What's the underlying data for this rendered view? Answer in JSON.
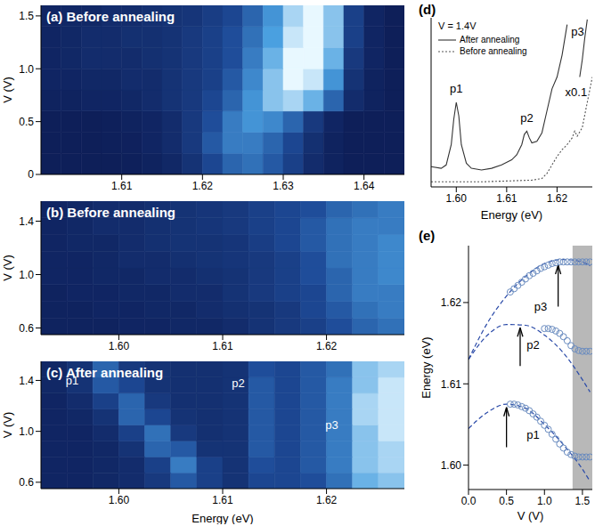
{
  "chart_data": [
    {
      "type": "heatmap",
      "title": "(a) Before annealing",
      "ylabel": "V (V)",
      "xlim": [
        1.6,
        1.645
      ],
      "xticks": [
        1.61,
        1.62,
        1.63,
        1.64
      ],
      "ylim": [
        0,
        1.6
      ],
      "yticks": [
        0,
        0.5,
        {
          "value": 1,
          "label": "1.0"
        },
        1.5
      ],
      "x_edges": [
        1.6,
        1.6025,
        1.605,
        1.6075,
        1.61,
        1.6125,
        1.615,
        1.6175,
        1.62,
        1.6225,
        1.625,
        1.6275,
        1.63,
        1.6325,
        1.635,
        1.6375,
        1.64,
        1.6425,
        1.645
      ],
      "y_edges": [
        0,
        0.2,
        0.4,
        0.6,
        0.8,
        1,
        1.2,
        1.4,
        1.6
      ],
      "cells": [
        [
          0.05,
          0.05,
          0.05,
          0.05,
          0.06,
          0.08,
          0.12,
          0.2,
          0.35,
          0.5,
          0.55,
          0.45,
          0.3,
          0.15,
          0.08,
          0.05,
          0.05,
          0.05
        ],
        [
          0.05,
          0.05,
          0.05,
          0.06,
          0.07,
          0.1,
          0.15,
          0.25,
          0.45,
          0.6,
          0.6,
          0.5,
          0.35,
          0.18,
          0.08,
          0.05,
          0.05,
          0.05
        ],
        [
          0.05,
          0.05,
          0.05,
          0.06,
          0.08,
          0.1,
          0.15,
          0.25,
          0.4,
          0.6,
          0.7,
          0.65,
          0.5,
          0.25,
          0.1,
          0.05,
          0.05,
          0.05
        ],
        [
          0.08,
          0.08,
          0.1,
          0.1,
          0.12,
          0.15,
          0.2,
          0.25,
          0.35,
          0.5,
          0.7,
          0.85,
          0.9,
          0.8,
          0.5,
          0.15,
          0.08,
          0.05
        ],
        [
          0.1,
          0.1,
          0.12,
          0.12,
          0.15,
          0.15,
          0.2,
          0.25,
          0.3,
          0.45,
          0.65,
          0.85,
          1,
          0.95,
          0.7,
          0.2,
          0.08,
          0.05
        ],
        [
          0.1,
          0.12,
          0.15,
          0.15,
          0.15,
          0.18,
          0.2,
          0.25,
          0.3,
          0.4,
          0.6,
          0.8,
          1,
          1,
          0.8,
          0.25,
          0.1,
          0.05
        ],
        [
          0.1,
          0.12,
          0.15,
          0.15,
          0.18,
          0.18,
          0.2,
          0.25,
          0.3,
          0.4,
          0.55,
          0.75,
          0.95,
          1,
          0.85,
          0.3,
          0.1,
          0.05
        ],
        [
          0.1,
          0.12,
          0.12,
          0.15,
          0.15,
          0.18,
          0.2,
          0.22,
          0.28,
          0.35,
          0.5,
          0.7,
          0.9,
          1,
          0.85,
          0.3,
          0.1,
          0.05
        ]
      ]
    },
    {
      "type": "heatmap",
      "title": "(b) Before annealing",
      "ylabel": "V (V)",
      "xlim": [
        1.5925,
        1.6275
      ],
      "xticks": [
        {
          "value": 1.6,
          "label": "1.60"
        },
        1.61,
        1.62
      ],
      "ylim": [
        0.55,
        1.55
      ],
      "yticks": [
        0.6,
        {
          "value": 1,
          "label": "1.0"
        },
        1.4
      ],
      "x_edges": [
        1.5925,
        1.595,
        1.5975,
        1.6,
        1.6025,
        1.605,
        1.6075,
        1.61,
        1.6125,
        1.615,
        1.6175,
        1.62,
        1.6225,
        1.625,
        1.6275
      ],
      "y_edges": [
        0.55,
        0.675,
        0.8,
        0.925,
        1.05,
        1.175,
        1.3,
        1.425,
        1.55
      ],
      "cells": [
        [
          0.08,
          0.08,
          0.08,
          0.1,
          0.1,
          0.12,
          0.12,
          0.15,
          0.2,
          0.25,
          0.3,
          0.4,
          0.5,
          0.55
        ],
        [
          0.08,
          0.08,
          0.1,
          0.1,
          0.12,
          0.12,
          0.15,
          0.18,
          0.2,
          0.25,
          0.35,
          0.45,
          0.55,
          0.6
        ],
        [
          0.08,
          0.1,
          0.1,
          0.12,
          0.12,
          0.15,
          0.15,
          0.2,
          0.25,
          0.3,
          0.35,
          0.5,
          0.6,
          0.6
        ],
        [
          0.1,
          0.1,
          0.12,
          0.12,
          0.15,
          0.15,
          0.18,
          0.2,
          0.25,
          0.3,
          0.4,
          0.5,
          0.6,
          0.65
        ],
        [
          0.1,
          0.1,
          0.12,
          0.15,
          0.15,
          0.18,
          0.2,
          0.22,
          0.25,
          0.3,
          0.4,
          0.55,
          0.6,
          0.65
        ],
        [
          0.1,
          0.12,
          0.12,
          0.15,
          0.18,
          0.2,
          0.2,
          0.22,
          0.28,
          0.35,
          0.45,
          0.55,
          0.6,
          0.65
        ],
        [
          0.1,
          0.12,
          0.15,
          0.15,
          0.18,
          0.2,
          0.22,
          0.25,
          0.3,
          0.35,
          0.45,
          0.55,
          0.6,
          0.6
        ],
        [
          0.1,
          0.12,
          0.15,
          0.15,
          0.18,
          0.2,
          0.22,
          0.25,
          0.3,
          0.35,
          0.4,
          0.5,
          0.55,
          0.6
        ]
      ]
    },
    {
      "type": "heatmap",
      "title": "(c) After annealing",
      "ylabel": "V (V)",
      "xlabel": "Energy (eV)",
      "xlim": [
        1.5925,
        1.6275
      ],
      "xticks": [
        {
          "value": 1.6,
          "label": "1.60"
        },
        1.61,
        1.62
      ],
      "ylim": [
        0.55,
        1.55
      ],
      "yticks": [
        0.6,
        {
          "value": 1,
          "label": "1.0"
        },
        1.4
      ],
      "x_edges": [
        1.5925,
        1.595,
        1.5975,
        1.6,
        1.6025,
        1.605,
        1.6075,
        1.61,
        1.6125,
        1.615,
        1.6175,
        1.62,
        1.6225,
        1.625,
        1.6275
      ],
      "y_edges": [
        0.55,
        0.675,
        0.8,
        0.925,
        1.05,
        1.175,
        1.3,
        1.425,
        1.55
      ],
      "cells": [
        [
          0.1,
          0.1,
          0.12,
          0.15,
          0.25,
          0.45,
          0.3,
          0.2,
          0.35,
          0.35,
          0.4,
          0.55,
          0.8,
          0.85
        ],
        [
          0.1,
          0.1,
          0.12,
          0.15,
          0.3,
          0.6,
          0.3,
          0.2,
          0.4,
          0.35,
          0.45,
          0.6,
          0.85,
          0.9
        ],
        [
          0.1,
          0.1,
          0.12,
          0.2,
          0.5,
          0.45,
          0.2,
          0.2,
          0.45,
          0.35,
          0.45,
          0.6,
          0.85,
          0.9
        ],
        [
          0.1,
          0.1,
          0.15,
          0.3,
          0.55,
          0.25,
          0.18,
          0.2,
          0.45,
          0.35,
          0.45,
          0.6,
          0.85,
          0.95
        ],
        [
          0.1,
          0.12,
          0.2,
          0.5,
          0.35,
          0.2,
          0.18,
          0.2,
          0.45,
          0.35,
          0.45,
          0.6,
          0.9,
          0.95
        ],
        [
          0.1,
          0.15,
          0.3,
          0.5,
          0.25,
          0.18,
          0.18,
          0.2,
          0.45,
          0.35,
          0.45,
          0.6,
          0.9,
          0.95
        ],
        [
          0.12,
          0.2,
          0.45,
          0.35,
          0.2,
          0.18,
          0.18,
          0.2,
          0.45,
          0.35,
          0.45,
          0.6,
          0.85,
          0.95
        ],
        [
          0.12,
          0.2,
          0.5,
          0.25,
          0.2,
          0.18,
          0.18,
          0.2,
          0.4,
          0.35,
          0.45,
          0.55,
          0.85,
          0.9
        ]
      ],
      "annotations": [
        {
          "text": "p1",
          "x": 1.5955,
          "y": 1.4
        },
        {
          "text": "p2",
          "x": 1.6115,
          "y": 1.38
        },
        {
          "text": "p3",
          "x": 1.6205,
          "y": 1.05
        }
      ]
    },
    {
      "type": "line",
      "title": "(d)",
      "subtitle": "V = 1.4V",
      "xlabel": "Energy (eV)",
      "xlim": [
        1.595,
        1.627
      ],
      "xticks": [
        {
          "value": 1.6,
          "label": "1.60"
        },
        1.61,
        1.62
      ],
      "ylim": [
        0,
        10
      ],
      "tick_labels": "x",
      "legend": "upper left",
      "series": [
        {
          "name": "After annealing",
          "color": "#333333",
          "line_style": "solid",
          "x": [
            1.595,
            1.597,
            1.598,
            1.599,
            1.5995,
            1.6,
            1.6005,
            1.601,
            1.602,
            1.603,
            1.605,
            1.607,
            1.609,
            1.611,
            1.612,
            1.613,
            1.6135,
            1.614,
            1.6145,
            1.615,
            1.616,
            1.617,
            1.618,
            1.619,
            1.62,
            1.621,
            1.622
          ],
          "values": [
            1.2,
            1.1,
            1.3,
            2.5,
            4,
            5,
            4.2,
            2.5,
            1.4,
            1.1,
            1,
            1.1,
            1.3,
            1.6,
            1.9,
            2.5,
            3.1,
            3.3,
            2.9,
            2.6,
            2.7,
            3.2,
            4.5,
            5.8,
            6.5,
            7.8,
            9.6
          ]
        },
        {
          "name": "Before annealing",
          "color": "#555555",
          "line_style": "dotted",
          "x": [
            1.595,
            1.6,
            1.605,
            1.61,
            1.615,
            1.617,
            1.618,
            1.619,
            1.62,
            1.621,
            1.622,
            1.623,
            1.6235,
            1.624,
            1.625,
            1.626,
            1.627
          ],
          "values": [
            0.3,
            0.3,
            0.3,
            0.35,
            0.4,
            0.5,
            0.8,
            1.3,
            1.8,
            2.2,
            2.5,
            2.9,
            3.3,
            3,
            3.5,
            5,
            6.5
          ]
        },
        {
          "color": "#333333",
          "line_style": "solid",
          "x": [
            1.6245,
            1.625,
            1.6255,
            1.626
          ],
          "values": [
            6.5,
            7.5,
            8.8,
            9.9
          ]
        }
      ],
      "annotations": [
        {
          "text": "p1",
          "x": 1.6,
          "y": 5.8
        },
        {
          "text": "p2",
          "x": 1.614,
          "y": 4.1
        },
        {
          "text": "p3",
          "x": 1.6241,
          "y": 9.2
        },
        {
          "text": "x0.1",
          "x": 1.6238,
          "y": 5.6
        }
      ]
    },
    {
      "type": "scatter",
      "title": "(e)",
      "xlabel": "V (V)",
      "ylabel": "Energy (eV)",
      "xlim": [
        0,
        1.63
      ],
      "xticks": [
        {
          "value": 0,
          "label": "0.0"
        },
        0.5,
        {
          "value": 1,
          "label": "1.0"
        },
        1.5
      ],
      "ylim": [
        1.597,
        1.627
      ],
      "yticks": [
        {
          "value": 1.6,
          "label": "1.60"
        },
        1.61,
        1.62
      ],
      "shaded_x": [
        1.37,
        1.63
      ],
      "series": [
        {
          "type": "scatter",
          "marker": "circle_open",
          "color": "#6a8cc0",
          "x": [
            0.55,
            0.6,
            0.65,
            0.7,
            0.75,
            0.8,
            0.85,
            0.9,
            0.95,
            1,
            1.05,
            1.1,
            1.15,
            1.2,
            1.25,
            1.3,
            1.35,
            1.4,
            1.45,
            1.5,
            1.55,
            1.6
          ],
          "values": [
            1.6075,
            1.6075,
            1.6074,
            1.6072,
            1.607,
            1.6067,
            1.6063,
            1.6059,
            1.6054,
            1.6049,
            1.6044,
            1.6038,
            1.6032,
            1.6026,
            1.6021,
            1.6016,
            1.6013,
            1.6011,
            1.601,
            1.601,
            1.601,
            1.601
          ]
        },
        {
          "type": "scatter",
          "marker": "circle_open",
          "color": "#6a8cc0",
          "x": [
            1,
            1.05,
            1.1,
            1.15,
            1.2,
            1.25,
            1.3,
            1.35,
            1.4,
            1.45,
            1.5,
            1.55,
            1.6
          ],
          "values": [
            1.6168,
            1.6168,
            1.6167,
            1.6165,
            1.6162,
            1.6158,
            1.6153,
            1.6147,
            1.6143,
            1.6141,
            1.614,
            1.614,
            1.614
          ]
        },
        {
          "type": "scatter",
          "marker": "circle_open",
          "color": "#6a8cc0",
          "x": [
            0.55,
            0.6,
            0.65,
            0.7,
            0.75,
            0.8,
            0.85,
            0.9,
            0.95,
            1,
            1.05,
            1.1,
            1.15,
            1.2,
            1.25,
            1.3,
            1.35,
            1.4,
            1.45,
            1.5,
            1.55,
            1.6
          ],
          "values": [
            1.6213,
            1.6217,
            1.6221,
            1.6225,
            1.6229,
            1.6233,
            1.6236,
            1.6239,
            1.6242,
            1.6244,
            1.6246,
            1.6248,
            1.6249,
            1.625,
            1.625,
            1.625,
            1.625,
            1.625,
            1.625,
            1.625,
            1.625,
            1.625
          ]
        },
        {
          "type": "line",
          "line_style": "dashed",
          "color": "#2a4aa8",
          "x": [
            0,
            0.25,
            0.5,
            0.75,
            1,
            1.25,
            1.5,
            1.6
          ],
          "values": [
            1.6045,
            1.6065,
            1.6075,
            1.607,
            1.605,
            1.6025,
            1.5995,
            1.598
          ]
        },
        {
          "type": "line",
          "line_style": "dashed",
          "color": "#2a4aa8",
          "x": [
            0,
            0.25,
            0.5,
            0.75,
            1,
            1.25,
            1.5,
            1.6
          ],
          "values": [
            1.613,
            1.616,
            1.6173,
            1.6172,
            1.616,
            1.6138,
            1.6105,
            1.609
          ]
        },
        {
          "type": "line",
          "line_style": "dashed",
          "color": "#2a4aa8",
          "x": [
            0,
            0.25,
            0.5,
            0.75,
            1,
            1.25,
            1.5,
            1.6
          ],
          "values": [
            1.613,
            1.6175,
            1.6208,
            1.6232,
            1.6248,
            1.6253,
            1.625,
            1.6245
          ]
        }
      ],
      "arrows": [
        {
          "x": 0.5,
          "y": [
            1.6022,
            1.6071
          ]
        },
        {
          "x": 0.68,
          "y": [
            1.6122,
            1.6169
          ]
        },
        {
          "x": 1.18,
          "y": [
            1.6195,
            1.6246
          ]
        }
      ],
      "annotations": [
        {
          "text": "p1",
          "x": 0.85,
          "y": 1.6037
        },
        {
          "text": "p2",
          "x": 0.85,
          "y": 1.6148
        },
        {
          "text": "p3",
          "x": 0.95,
          "y": 1.6195
        }
      ]
    }
  ]
}
